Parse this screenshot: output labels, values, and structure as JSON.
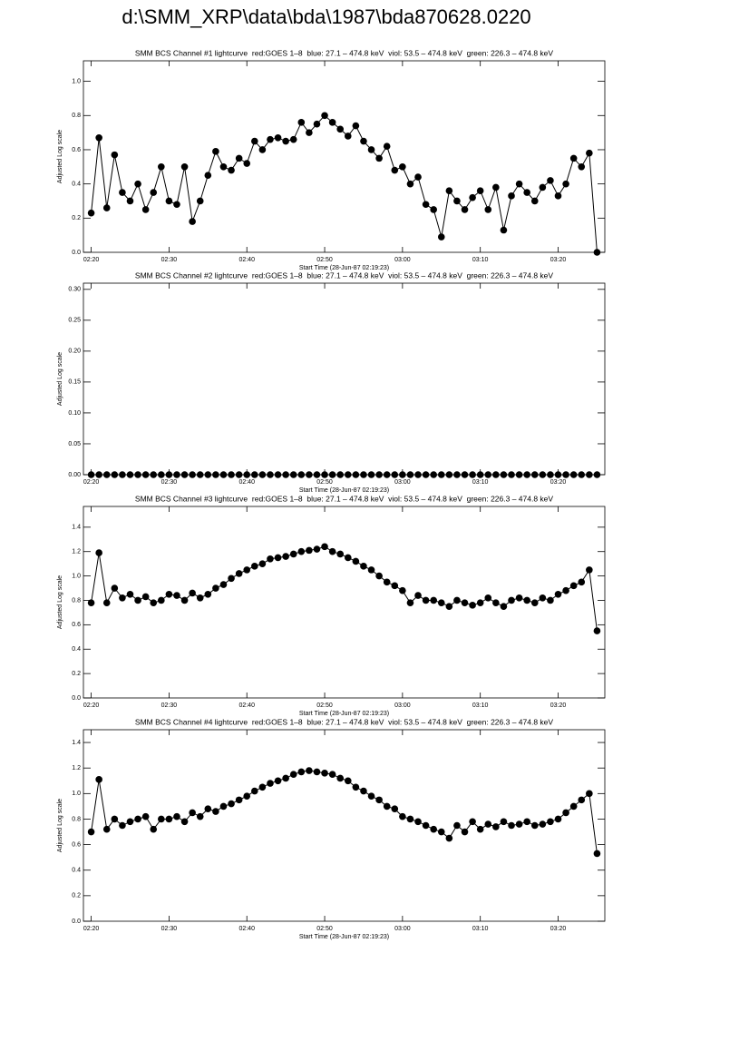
{
  "title": "d:\\SMM_XRP\\data\\bda\\1987\\bda870628.0220",
  "chart_data": [
    {
      "type": "line",
      "title": "SMM BCS Channel #1 lightcurve  red:GOES 1–8  blue: 27.1 – 474.8 keV  viol: 53.5 – 474.8 keV  green: 226.3 – 474.8 keV",
      "xlabel": "Start Time (28-Jun-87 02:19:23)",
      "ylabel": "Adjusted Log scale",
      "color": "#000000",
      "marker": "circle",
      "x": [
        "02:20",
        "02:21",
        "02:22",
        "02:23",
        "02:24",
        "02:25",
        "02:26",
        "02:27",
        "02:28",
        "02:29",
        "02:30",
        "02:31",
        "02:32",
        "02:33",
        "02:34",
        "02:35",
        "02:36",
        "02:37",
        "02:38",
        "02:39",
        "02:40",
        "02:41",
        "02:42",
        "02:43",
        "02:44",
        "02:45",
        "02:46",
        "02:47",
        "02:48",
        "02:49",
        "02:50",
        "02:51",
        "02:52",
        "02:53",
        "02:54",
        "02:55",
        "02:56",
        "02:57",
        "02:58",
        "02:59",
        "03:00",
        "03:01",
        "03:02",
        "03:03",
        "03:04",
        "03:05",
        "03:06",
        "03:07",
        "03:08",
        "03:09",
        "03:10",
        "03:11",
        "03:12",
        "03:13",
        "03:14",
        "03:15",
        "03:16",
        "03:17",
        "03:18",
        "03:19",
        "03:20",
        "03:21",
        "03:22",
        "03:23",
        "03:24",
        "03:25"
      ],
      "values": [
        0.23,
        0.67,
        0.26,
        0.57,
        0.35,
        0.3,
        0.4,
        0.25,
        0.35,
        0.5,
        0.3,
        0.28,
        0.5,
        0.18,
        0.3,
        0.45,
        0.59,
        0.5,
        0.48,
        0.55,
        0.52,
        0.65,
        0.6,
        0.66,
        0.67,
        0.65,
        0.66,
        0.76,
        0.7,
        0.75,
        0.8,
        0.76,
        0.72,
        0.68,
        0.74,
        0.65,
        0.6,
        0.55,
        0.62,
        0.48,
        0.5,
        0.4,
        0.44,
        0.28,
        0.25,
        0.09,
        0.36,
        0.3,
        0.25,
        0.32,
        0.36,
        0.25,
        0.38,
        0.13,
        0.33,
        0.4,
        0.35,
        0.3,
        0.38,
        0.42,
        0.33,
        0.4,
        0.55,
        0.5,
        0.58,
        0.0
      ],
      "xlim": [
        "02:19",
        "03:26"
      ],
      "xticks": [
        "02:20",
        "02:30",
        "02:40",
        "02:50",
        "03:00",
        "03:10",
        "03:20"
      ],
      "ylim": [
        0,
        1.12
      ],
      "yticks": [
        {
          "value": 0,
          "label": "0.0"
        },
        0.2,
        0.4,
        0.6,
        0.8,
        {
          "value": 1,
          "label": "1.0"
        }
      ]
    },
    {
      "type": "line",
      "title": "SMM BCS Channel #2 lightcurve  red:GOES 1–8  blue: 27.1 – 474.8 keV  viol: 53.5 – 474.8 keV  green: 226.3 – 474.8 keV",
      "xlabel": "Start Time (28-Jun-87 02:19:23)",
      "ylabel": "Adjusted Log scale",
      "color": "#000000",
      "marker": "circle",
      "x": [
        "02:20",
        "02:21",
        "02:22",
        "02:23",
        "02:24",
        "02:25",
        "02:26",
        "02:27",
        "02:28",
        "02:29",
        "02:30",
        "02:31",
        "02:32",
        "02:33",
        "02:34",
        "02:35",
        "02:36",
        "02:37",
        "02:38",
        "02:39",
        "02:40",
        "02:41",
        "02:42",
        "02:43",
        "02:44",
        "02:45",
        "02:46",
        "02:47",
        "02:48",
        "02:49",
        "02:50",
        "02:51",
        "02:52",
        "02:53",
        "02:54",
        "02:55",
        "02:56",
        "02:57",
        "02:58",
        "02:59",
        "03:00",
        "03:01",
        "03:02",
        "03:03",
        "03:04",
        "03:05",
        "03:06",
        "03:07",
        "03:08",
        "03:09",
        "03:10",
        "03:11",
        "03:12",
        "03:13",
        "03:14",
        "03:15",
        "03:16",
        "03:17",
        "03:18",
        "03:19",
        "03:20",
        "03:21",
        "03:22",
        "03:23",
        "03:24",
        "03:25"
      ],
      "values": [
        0,
        0,
        0,
        0,
        0,
        0,
        0,
        0,
        0,
        0,
        0,
        0,
        0,
        0,
        0,
        0,
        0,
        0,
        0,
        0,
        0,
        0,
        0,
        0,
        0,
        0,
        0,
        0,
        0,
        0,
        0,
        0,
        0,
        0,
        0,
        0,
        0,
        0,
        0,
        0,
        0,
        0,
        0,
        0,
        0,
        0,
        0,
        0,
        0,
        0,
        0,
        0,
        0,
        0,
        0,
        0,
        0,
        0,
        0,
        0,
        0,
        0,
        0,
        0,
        0,
        0
      ],
      "xlim": [
        "02:19",
        "03:26"
      ],
      "xticks": [
        "02:20",
        "02:30",
        "02:40",
        "02:50",
        "03:00",
        "03:10",
        "03:20"
      ],
      "ylim": [
        0,
        0.31
      ],
      "yticks": [
        {
          "value": 0,
          "label": "0.00"
        },
        0.05,
        {
          "value": 0.1,
          "label": "0.10"
        },
        0.15,
        {
          "value": 0.2,
          "label": "0.20"
        },
        0.25,
        {
          "value": 0.3,
          "label": "0.30"
        }
      ]
    },
    {
      "type": "line",
      "title": "SMM BCS Channel #3 lightcurve  red:GOES 1–8  blue: 27.1 – 474.8 keV  viol: 53.5 – 474.8 keV  green: 226.3 – 474.8 keV",
      "xlabel": "Start Time (28-Jun-87 02:19:23)",
      "ylabel": "Adjusted Log scale",
      "color": "#000000",
      "marker": "circle",
      "x": [
        "02:20",
        "02:21",
        "02:22",
        "02:23",
        "02:24",
        "02:25",
        "02:26",
        "02:27",
        "02:28",
        "02:29",
        "02:30",
        "02:31",
        "02:32",
        "02:33",
        "02:34",
        "02:35",
        "02:36",
        "02:37",
        "02:38",
        "02:39",
        "02:40",
        "02:41",
        "02:42",
        "02:43",
        "02:44",
        "02:45",
        "02:46",
        "02:47",
        "02:48",
        "02:49",
        "02:50",
        "02:51",
        "02:52",
        "02:53",
        "02:54",
        "02:55",
        "02:56",
        "02:57",
        "02:58",
        "02:59",
        "03:00",
        "03:01",
        "03:02",
        "03:03",
        "03:04",
        "03:05",
        "03:06",
        "03:07",
        "03:08",
        "03:09",
        "03:10",
        "03:11",
        "03:12",
        "03:13",
        "03:14",
        "03:15",
        "03:16",
        "03:17",
        "03:18",
        "03:19",
        "03:20",
        "03:21",
        "03:22",
        "03:23",
        "03:24",
        "03:25"
      ],
      "values": [
        0.78,
        1.19,
        0.78,
        0.9,
        0.82,
        0.85,
        0.8,
        0.83,
        0.78,
        0.8,
        0.85,
        0.84,
        0.8,
        0.86,
        0.82,
        0.85,
        0.9,
        0.93,
        0.98,
        1.02,
        1.05,
        1.08,
        1.1,
        1.14,
        1.15,
        1.16,
        1.18,
        1.2,
        1.21,
        1.22,
        1.24,
        1.2,
        1.18,
        1.15,
        1.12,
        1.08,
        1.05,
        1.0,
        0.95,
        0.92,
        0.88,
        0.78,
        0.84,
        0.8,
        0.8,
        0.78,
        0.75,
        0.8,
        0.78,
        0.76,
        0.78,
        0.82,
        0.78,
        0.75,
        0.8,
        0.82,
        0.8,
        0.78,
        0.82,
        0.8,
        0.85,
        0.88,
        0.92,
        0.95,
        1.05,
        0.55
      ],
      "xlim": [
        "02:19",
        "03:26"
      ],
      "xticks": [
        "02:20",
        "02:30",
        "02:40",
        "02:50",
        "03:00",
        "03:10",
        "03:20"
      ],
      "ylim": [
        0,
        1.57
      ],
      "yticks": [
        {
          "value": 0,
          "label": "0.0"
        },
        0.2,
        0.4,
        0.6,
        0.8,
        {
          "value": 1,
          "label": "1.0"
        },
        1.2,
        1.4
      ]
    },
    {
      "type": "line",
      "title": "SMM BCS Channel #4 lightcurve  red:GOES 1–8  blue: 27.1 – 474.8 keV  viol: 53.5 – 474.8 keV  green: 226.3 – 474.8 keV",
      "xlabel": "Start Time (28-Jun-87 02:19:23)",
      "ylabel": "Adjusted Log scale",
      "color": "#000000",
      "marker": "circle",
      "x": [
        "02:20",
        "02:21",
        "02:22",
        "02:23",
        "02:24",
        "02:25",
        "02:26",
        "02:27",
        "02:28",
        "02:29",
        "02:30",
        "02:31",
        "02:32",
        "02:33",
        "02:34",
        "02:35",
        "02:36",
        "02:37",
        "02:38",
        "02:39",
        "02:40",
        "02:41",
        "02:42",
        "02:43",
        "02:44",
        "02:45",
        "02:46",
        "02:47",
        "02:48",
        "02:49",
        "02:50",
        "02:51",
        "02:52",
        "02:53",
        "02:54",
        "02:55",
        "02:56",
        "02:57",
        "02:58",
        "02:59",
        "03:00",
        "03:01",
        "03:02",
        "03:03",
        "03:04",
        "03:05",
        "03:06",
        "03:07",
        "03:08",
        "03:09",
        "03:10",
        "03:11",
        "03:12",
        "03:13",
        "03:14",
        "03:15",
        "03:16",
        "03:17",
        "03:18",
        "03:19",
        "03:20",
        "03:21",
        "03:22",
        "03:23",
        "03:24",
        "03:25"
      ],
      "values": [
        0.7,
        1.11,
        0.72,
        0.8,
        0.75,
        0.78,
        0.8,
        0.82,
        0.72,
        0.8,
        0.8,
        0.82,
        0.78,
        0.85,
        0.82,
        0.88,
        0.86,
        0.9,
        0.92,
        0.95,
        0.98,
        1.02,
        1.05,
        1.08,
        1.1,
        1.12,
        1.15,
        1.17,
        1.18,
        1.17,
        1.16,
        1.15,
        1.12,
        1.1,
        1.05,
        1.02,
        0.98,
        0.95,
        0.9,
        0.88,
        0.82,
        0.8,
        0.78,
        0.75,
        0.72,
        0.7,
        0.65,
        0.75,
        0.7,
        0.78,
        0.72,
        0.76,
        0.74,
        0.78,
        0.75,
        0.76,
        0.78,
        0.75,
        0.76,
        0.78,
        0.8,
        0.85,
        0.9,
        0.95,
        1.0,
        0.53
      ],
      "xlim": [
        "02:19",
        "03:26"
      ],
      "xticks": [
        "02:20",
        "02:30",
        "02:40",
        "02:50",
        "03:00",
        "03:10",
        "03:20"
      ],
      "ylim": [
        0,
        1.5
      ],
      "yticks": [
        {
          "value": 0,
          "label": "0.0"
        },
        0.2,
        0.4,
        0.6,
        0.8,
        {
          "value": 1,
          "label": "1.0"
        },
        1.2,
        1.4
      ]
    }
  ]
}
